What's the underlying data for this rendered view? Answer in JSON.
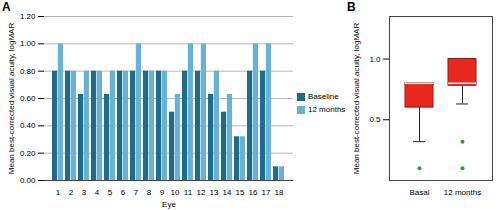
{
  "chart_data": [
    {
      "type": "bar",
      "title": "A",
      "categories": [
        "1",
        "2",
        "3",
        "4",
        "5",
        "6",
        "7",
        "8",
        "9",
        "10",
        "11",
        "12",
        "13",
        "14",
        "15",
        "16",
        "17",
        "18"
      ],
      "series": [
        {
          "name": "Baseline",
          "color": "#1f6b8c",
          "values": [
            0.8,
            0.8,
            0.63,
            0.8,
            0.63,
            0.8,
            0.8,
            0.8,
            0.8,
            0.5,
            0.8,
            0.8,
            0.63,
            0.5,
            0.32,
            0.8,
            0.8,
            0.1
          ]
        },
        {
          "name": "12 months",
          "color": "#66b3d6",
          "values": [
            1.0,
            0.8,
            0.8,
            0.8,
            0.8,
            0.8,
            1.0,
            0.8,
            0.8,
            0.63,
            1.0,
            1.0,
            0.8,
            0.63,
            0.32,
            1.0,
            1.0,
            0.1
          ]
        }
      ],
      "xlabel": "Eye",
      "ylabel": "Mean best-corrected visual acuity, logMAR",
      "ylim": [
        0,
        1.2
      ],
      "yticks": [
        {
          "value": 0,
          "label": "0.00"
        },
        {
          "value": 0.2,
          "label": "0.20"
        },
        {
          "value": 0.4,
          "label": "0.40"
        },
        {
          "value": 0.6,
          "label": "0.60"
        },
        {
          "value": 0.8,
          "label": "0.80"
        },
        {
          "value": 1,
          "label": "1.00"
        },
        {
          "value": 1.2,
          "label": "1.20"
        }
      ],
      "grid": true,
      "legend": "right"
    },
    {
      "type": "box",
      "title": "B",
      "categories": [
        "Basal",
        "12 months"
      ],
      "boxes": [
        {
          "category": "Basal",
          "min": 0.32,
          "q1": 0.6,
          "median": 0.8,
          "q3": 0.8,
          "max": 0.8,
          "outliers": [
            0.1
          ]
        },
        {
          "category": "12 months",
          "min": 0.63,
          "q1": 0.78,
          "median": 0.8,
          "q3": 1.0,
          "max": 1.0,
          "outliers": [
            0.32,
            0.1
          ]
        }
      ],
      "color": "#e8281e",
      "ylabel": "Mean best-corrected visual acuity, logMAR",
      "ylim": [
        0,
        1.35
      ],
      "yticks": [
        0.5,
        {
          "value": 1,
          "label": "1.0"
        }
      ]
    }
  ]
}
